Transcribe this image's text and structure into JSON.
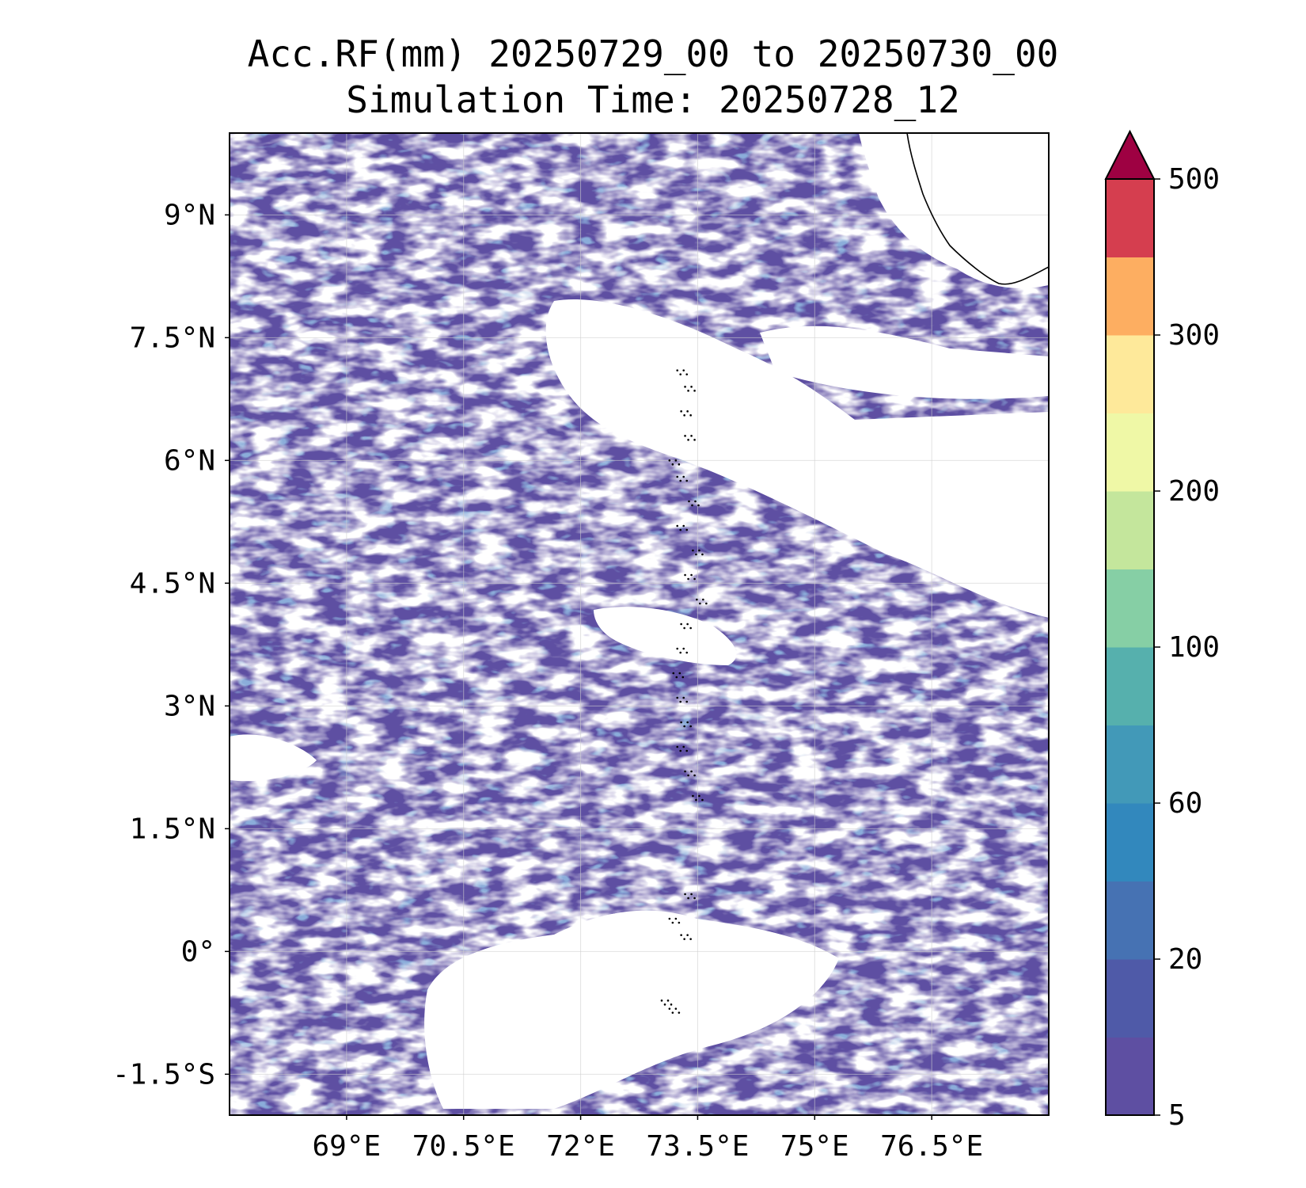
{
  "title_line1": "Acc.RF(mm) 20250729_00 to 20250730_00",
  "title_line2": "Simulation Time: 20250728_12",
  "map": {
    "lon_range": [
      67.5,
      78.0
    ],
    "lat_range": [
      -2.0,
      10.0
    ],
    "grid": true,
    "x_ticks": [
      {
        "value": 69.0,
        "label": "69°E"
      },
      {
        "value": 70.5,
        "label": "70.5°E"
      },
      {
        "value": 72.0,
        "label": "72°E"
      },
      {
        "value": 73.5,
        "label": "73.5°E"
      },
      {
        "value": 75.0,
        "label": "75°E"
      },
      {
        "value": 76.5,
        "label": "76.5°E"
      }
    ],
    "y_ticks": [
      {
        "value": 9.0,
        "label": "9°N"
      },
      {
        "value": 7.5,
        "label": "7.5°N"
      },
      {
        "value": 6.0,
        "label": "6°N"
      },
      {
        "value": 4.5,
        "label": "4.5°N"
      },
      {
        "value": 3.0,
        "label": "3°N"
      },
      {
        "value": 1.5,
        "label": "1.5°N"
      },
      {
        "value": 0.0,
        "label": "0°"
      },
      {
        "value": -1.5,
        "label": "-1.5°S"
      }
    ],
    "field_colors": {
      "dominant": "#5e4fa2",
      "secondary": "#4860aa",
      "tertiary": "#3288bd",
      "highlight": "#66c2a5"
    }
  },
  "colorbar": {
    "levels": [
      5,
      10,
      20,
      40,
      60,
      80,
      100,
      150,
      200,
      250,
      300,
      400,
      500
    ],
    "tick_labels": [
      "5",
      "20",
      "60",
      "100",
      "200",
      "300",
      "500"
    ],
    "tick_values": [
      5,
      20,
      60,
      100,
      200,
      300,
      500
    ],
    "colors": [
      "#5e4fa2",
      "#4f5aa8",
      "#4672b3",
      "#3288bd",
      "#4299b8",
      "#56b0ad",
      "#86cfa5",
      "#c4e69c",
      "#eff8a6",
      "#fee99a",
      "#fdae61",
      "#d53e4f"
    ],
    "extend_color": "#9e0142"
  }
}
